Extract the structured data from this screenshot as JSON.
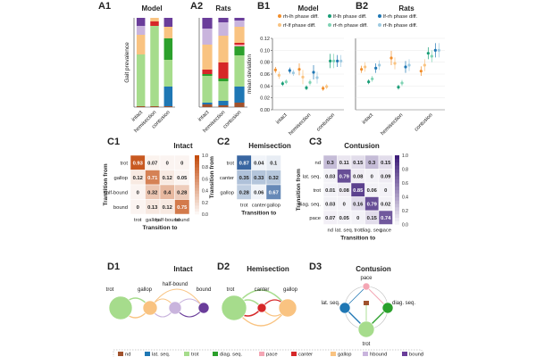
{
  "panels": {
    "A1": {
      "label": "A1",
      "title": "Model"
    },
    "A2": {
      "label": "A2",
      "title": "Rats"
    },
    "B1": {
      "label": "B1",
      "title": "Model"
    },
    "B2": {
      "label": "B2",
      "title": "Rats"
    },
    "C1": {
      "label": "C1",
      "title": "Intact"
    },
    "C2": {
      "label": "C2",
      "title": "Hemisection"
    },
    "C3": {
      "label": "C3",
      "title": "Contusion"
    },
    "D1": {
      "label": "D1",
      "title": "Intact"
    },
    "D2": {
      "label": "D2",
      "title": "Hemisection"
    },
    "D3": {
      "label": "D3",
      "title": "Contusion"
    }
  },
  "colors": {
    "nd": "#a0522d",
    "lat_seq": "#1f77b4",
    "trot": "#a6dc8c",
    "diag_seq": "#2ca02c",
    "pace": "#f4a6b4",
    "canter": "#d62728",
    "gallop": "#f9c381",
    "hbound": "#c9b4dd",
    "bound": "#6a3d9a",
    "heat_orange": "#c44d0f",
    "heat_blue": "#1b4f93",
    "heat_purple": "#3f1f7a"
  },
  "chart_data": [
    {
      "id": "A1",
      "type": "bar",
      "stacked": true,
      "title": "Model",
      "ylabel": "Gait prevalence",
      "ylim": [
        0,
        1
      ],
      "categories": [
        "intact",
        "hemisection",
        "contusion"
      ],
      "series": [
        {
          "name": "nd",
          "values": [
            0.01,
            0.01,
            0.01
          ]
        },
        {
          "name": "lat. seq.",
          "values": [
            0.0,
            0.0,
            0.22
          ]
        },
        {
          "name": "trot",
          "values": [
            0.58,
            0.9,
            0.3
          ]
        },
        {
          "name": "diag. seq.",
          "values": [
            0.0,
            0.0,
            0.24
          ]
        },
        {
          "name": "pace",
          "values": [
            0.0,
            0.0,
            0.0
          ]
        },
        {
          "name": "canter",
          "values": [
            0.0,
            0.05,
            0.0
          ]
        },
        {
          "name": "gallop",
          "values": [
            0.22,
            0.04,
            0.13
          ]
        },
        {
          "name": "hbound",
          "values": [
            0.1,
            0.0,
            0.0
          ]
        },
        {
          "name": "bound",
          "values": [
            0.09,
            0.0,
            0.1
          ]
        }
      ]
    },
    {
      "id": "A2",
      "type": "bar",
      "stacked": true,
      "title": "Rats",
      "ylim": [
        0,
        1
      ],
      "categories": [
        "intact",
        "hemisection",
        "contusion"
      ],
      "series": [
        {
          "name": "nd",
          "values": [
            0.03,
            0.02,
            0.05
          ]
        },
        {
          "name": "lat. seq.",
          "values": [
            0.02,
            0.05,
            0.18
          ]
        },
        {
          "name": "trot",
          "values": [
            0.3,
            0.22,
            0.35
          ]
        },
        {
          "name": "diag. seq.",
          "values": [
            0.02,
            0.03,
            0.1
          ]
        },
        {
          "name": "pace",
          "values": [
            0.0,
            0.0,
            0.02
          ]
        },
        {
          "name": "canter",
          "values": [
            0.05,
            0.18,
            0.02
          ]
        },
        {
          "name": "gallop",
          "values": [
            0.28,
            0.3,
            0.18
          ]
        },
        {
          "name": "hbound",
          "values": [
            0.18,
            0.15,
            0.07
          ]
        },
        {
          "name": "bound",
          "values": [
            0.12,
            0.05,
            0.03
          ]
        }
      ]
    },
    {
      "id": "B1",
      "type": "scatter",
      "title": "Model",
      "ylabel": "mean deviation",
      "ylim": [
        0,
        0.12
      ],
      "yticks": [
        "0.00",
        "0.02",
        "0.04",
        "0.06",
        "0.08",
        "0.10",
        "0.12"
      ],
      "categories": [
        "intact",
        "hemisection",
        "contusion"
      ],
      "series": [
        {
          "name": "rh-lh phase diff.",
          "values": [
            0.067,
            0.068,
            0.036
          ],
          "err": [
            0.005,
            0.01,
            0.004
          ]
        },
        {
          "name": "rf-lf phase diff.",
          "values": [
            0.058,
            0.055,
            0.039
          ],
          "err": [
            0.006,
            0.012,
            0.004
          ]
        },
        {
          "name": "lf-lh phase diff.",
          "values": [
            0.044,
            0.037,
            0.082
          ],
          "err": [
            0.004,
            0.004,
            0.012
          ]
        },
        {
          "name": "rf-rh phase diff.",
          "values": [
            0.047,
            0.046,
            0.082
          ],
          "err": [
            0.004,
            0.005,
            0.012
          ]
        },
        {
          "name": "lf-rh phase diff.",
          "values": [
            0.066,
            0.063,
            0.082
          ],
          "err": [
            0.005,
            0.012,
            0.01
          ]
        },
        {
          "name": "rf-lh phase diff.",
          "values": [
            0.062,
            0.054,
            0.082
          ],
          "err": [
            0.005,
            0.01,
            0.01
          ]
        }
      ]
    },
    {
      "id": "B2",
      "type": "scatter",
      "title": "Rats",
      "ylim": [
        0,
        0.12
      ],
      "categories": [
        "intact",
        "hemisection",
        "contusion"
      ],
      "series": [
        {
          "name": "rh-lh phase diff.",
          "values": [
            0.068,
            0.087,
            0.065
          ],
          "err": [
            0.006,
            0.012,
            0.008
          ]
        },
        {
          "name": "rf-lf phase diff.",
          "values": [
            0.072,
            0.078,
            0.075
          ],
          "err": [
            0.008,
            0.01,
            0.01
          ]
        },
        {
          "name": "lf-lh phase diff.",
          "values": [
            0.047,
            0.038,
            0.095
          ],
          "err": [
            0.004,
            0.004,
            0.01
          ]
        },
        {
          "name": "rf-rh phase diff.",
          "values": [
            0.052,
            0.045,
            0.09
          ],
          "err": [
            0.005,
            0.005,
            0.01
          ]
        },
        {
          "name": "lf-rh phase diff.",
          "values": [
            0.07,
            0.072,
            0.1
          ],
          "err": [
            0.008,
            0.01,
            0.012
          ]
        },
        {
          "name": "rf-lh phase diff.",
          "values": [
            0.075,
            0.075,
            0.1
          ],
          "err": [
            0.008,
            0.01,
            0.012
          ]
        }
      ]
    },
    {
      "id": "C1",
      "type": "heatmap",
      "title": "Intact",
      "xlabel": "Transition to",
      "ylabel": "Transition from",
      "rows": [
        "trot",
        "gallop",
        "half-bound",
        "bound"
      ],
      "cols": [
        "trot",
        "gallop",
        "half-bound",
        "bound"
      ],
      "colorbar": [
        "0.0",
        "0.2",
        "0.4",
        "0.6",
        "0.8",
        "1.0"
      ],
      "values": [
        [
          0.93,
          0.07,
          0,
          0
        ],
        [
          0.12,
          0.71,
          0.12,
          0.05
        ],
        [
          0,
          0.32,
          0.4,
          0.28
        ],
        [
          0,
          0.13,
          0.12,
          0.75
        ]
      ]
    },
    {
      "id": "C2",
      "type": "heatmap",
      "title": "Hemisection",
      "xlabel": "Transition to",
      "ylabel": "Transition from",
      "rows": [
        "trot",
        "canter",
        "gallop"
      ],
      "cols": [
        "trot",
        "canter",
        "gallop"
      ],
      "colorbar": [
        "0.0",
        "0.2",
        "0.4",
        "0.6",
        "0.8",
        "1.0"
      ],
      "values": [
        [
          0.87,
          0.04,
          0.1
        ],
        [
          0.35,
          0.33,
          0.32
        ],
        [
          0.28,
          0.06,
          0.67
        ]
      ]
    },
    {
      "id": "C3",
      "type": "heatmap",
      "title": "Contusion",
      "xlabel": "Transition to",
      "ylabel": "Transition from",
      "rows": [
        "nd",
        "lat. seq.",
        "trot",
        "diag. seq.",
        "pace"
      ],
      "cols": [
        "nd",
        "lat. seq.",
        "trot",
        "diag. seq.",
        "pace"
      ],
      "colorbar": [
        "0.0",
        "0.2",
        "0.4",
        "0.6",
        "0.8",
        "1.0"
      ],
      "values": [
        [
          0.3,
          0.11,
          0.15,
          0.3,
          0.15
        ],
        [
          0.03,
          0.79,
          0.08,
          0,
          0.09
        ],
        [
          0.01,
          0.08,
          0.85,
          0.06,
          0
        ],
        [
          0.03,
          0,
          0.16,
          0.79,
          0.02
        ],
        [
          0.07,
          0.05,
          0,
          0.15,
          0.74
        ]
      ]
    }
  ],
  "graphs": {
    "D1": {
      "nodes": [
        "trot",
        "gallop",
        "half-bound",
        "bound"
      ]
    },
    "D2": {
      "nodes": [
        "trot",
        "canter",
        "gallop"
      ]
    },
    "D3": {
      "nodes": [
        "pace",
        "lat. seq.",
        "diag. seq.",
        "trot"
      ]
    }
  },
  "legend": [
    {
      "name": "nd",
      "color": "#a0522d"
    },
    {
      "name": "lat. seq.",
      "color": "#1f77b4"
    },
    {
      "name": "trot",
      "color": "#a6dc8c"
    },
    {
      "name": "diag. seq.",
      "color": "#2ca02c"
    },
    {
      "name": "pace",
      "color": "#f4a6b4"
    },
    {
      "name": "canter",
      "color": "#d62728"
    },
    {
      "name": "gallop",
      "color": "#f9c381"
    },
    {
      "name": "hbound",
      "color": "#c9b4dd"
    },
    {
      "name": "bound",
      "color": "#6a3d9a"
    }
  ],
  "b_legend": [
    {
      "name": "rh-lh phase diff.",
      "color": "#f28e2b"
    },
    {
      "name": "rf-lf phase diff.",
      "color": "#f9c381"
    },
    {
      "name": "lf-lh phase diff.",
      "color": "#1a9e77"
    },
    {
      "name": "rf-rh phase diff.",
      "color": "#7fd3b4"
    },
    {
      "name": "lf-rh phase diff.",
      "color": "#1f77b4"
    },
    {
      "name": "rf-lh phase diff.",
      "color": "#9ecae1"
    }
  ]
}
